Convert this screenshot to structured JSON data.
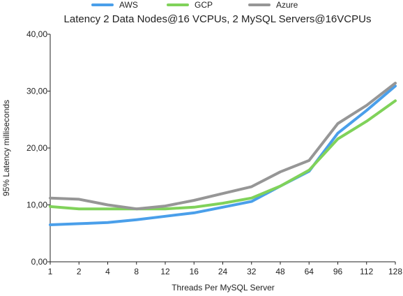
{
  "chart_data": {
    "type": "line",
    "title": "Latency 2 Data Nodes@16 VCPUs, 2 MySQL Servers@16VCPUs",
    "xlabel": "Threads Per MySQL Server",
    "ylabel": "95% Latency milliseconds",
    "categories": [
      "1",
      "2",
      "4",
      "8",
      "12",
      "16",
      "24",
      "32",
      "48",
      "64",
      "96",
      "112",
      "128"
    ],
    "ylim": [
      0,
      40
    ],
    "yticks": [
      "0,00",
      "10,00",
      "20,00",
      "30,00",
      "40,00"
    ],
    "ytick_values": [
      0,
      10,
      20,
      30,
      40
    ],
    "grid": false,
    "legend_position": "top",
    "series": [
      {
        "name": "AWS",
        "color": "#4a9fea",
        "values": [
          6.5,
          6.7,
          6.9,
          7.4,
          8.0,
          8.6,
          9.6,
          10.6,
          13.3,
          15.9,
          22.6,
          26.6,
          30.9
        ]
      },
      {
        "name": "GCP",
        "color": "#80d25a",
        "values": [
          9.7,
          9.3,
          9.3,
          9.3,
          9.3,
          9.6,
          10.3,
          11.2,
          13.3,
          16.1,
          21.6,
          24.7,
          28.3
        ]
      },
      {
        "name": "Azure",
        "color": "#969696",
        "values": [
          11.2,
          11.0,
          10.0,
          9.3,
          9.8,
          10.8,
          12.0,
          13.2,
          15.8,
          17.8,
          24.3,
          27.5,
          31.4
        ]
      }
    ]
  }
}
